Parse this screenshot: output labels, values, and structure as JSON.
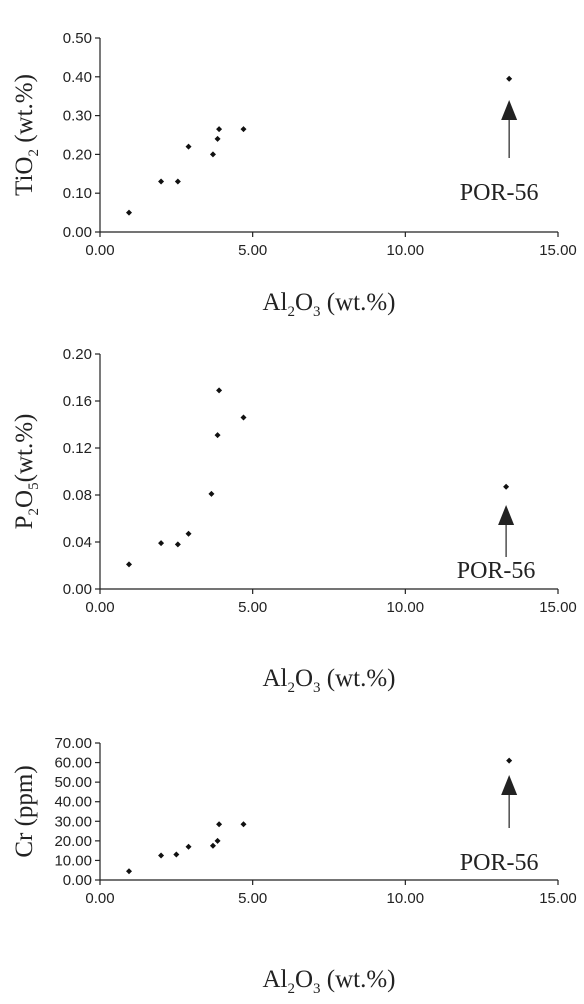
{
  "chart_data": [
    {
      "type": "scatter",
      "title": "",
      "xlabel": {
        "pre": "Al",
        "s1": "2",
        "mid": "O",
        "s2": "3",
        "post": " (wt.%)"
      },
      "ylabel": {
        "pre": "TiO",
        "sub": "2",
        "post": " (wt.%)"
      },
      "xlim": [
        0,
        15
      ],
      "ylim": [
        0,
        0.5
      ],
      "xticks": [
        "0.00",
        "5.00",
        "10.00",
        "15.00"
      ],
      "yticks": [
        "0.00",
        "0.10",
        "0.20",
        "0.30",
        "0.40",
        "0.50"
      ],
      "grid": false,
      "series": [
        {
          "x": [
            0.95,
            2.0,
            2.55,
            2.9,
            3.7,
            3.85,
            3.9,
            4.7,
            13.4
          ],
          "y": [
            0.05,
            0.13,
            0.13,
            0.22,
            0.2,
            0.24,
            0.265,
            0.265,
            0.395
          ]
        }
      ],
      "annotation": {
        "text": "POR-56",
        "x": 13.4
      }
    },
    {
      "type": "scatter",
      "title": "",
      "xlabel": {
        "pre": "Al",
        "s1": "2",
        "mid": "O",
        "s2": "3",
        "post": " (wt.%)"
      },
      "ylabel": {
        "pre": "P",
        "sub": "2",
        "mid": "O",
        "sub2": "5",
        "post": "(wt.%)"
      },
      "xlim": [
        0,
        15
      ],
      "ylim": [
        0,
        0.2
      ],
      "xticks": [
        "0.00",
        "5.00",
        "10.00",
        "15.00"
      ],
      "yticks": [
        "0.00",
        "0.04",
        "0.08",
        "0.12",
        "0.16",
        "0.20"
      ],
      "grid": false,
      "series": [
        {
          "x": [
            0.95,
            2.0,
            2.55,
            2.9,
            3.65,
            3.85,
            3.9,
            4.7,
            13.3
          ],
          "y": [
            0.021,
            0.039,
            0.038,
            0.047,
            0.081,
            0.131,
            0.169,
            0.146,
            0.087
          ]
        }
      ],
      "annotation": {
        "text": "POR-56",
        "x": 13.3
      }
    },
    {
      "type": "scatter",
      "title": "",
      "xlabel": {
        "pre": "Al",
        "s1": "2",
        "mid": "O",
        "s2": "3",
        "post": " (wt.%)"
      },
      "ylabel": {
        "pre": "Cr (ppm)",
        "sub": "",
        "post": ""
      },
      "xlim": [
        0,
        15
      ],
      "ylim": [
        0,
        70
      ],
      "xticks": [
        "0.00",
        "5.00",
        "10.00",
        "15.00"
      ],
      "yticks": [
        "0.00",
        "10.00",
        "20.00",
        "30.00",
        "40.00",
        "50.00",
        "60.00",
        "70.00"
      ],
      "grid": false,
      "series": [
        {
          "x": [
            0.95,
            2.0,
            2.5,
            2.9,
            3.7,
            3.85,
            3.9,
            4.7,
            13.4
          ],
          "y": [
            4.5,
            12.5,
            13,
            17,
            17.5,
            20,
            28.5,
            28.5,
            61
          ]
        }
      ],
      "annotation": {
        "text": "POR-56",
        "x": 13.4
      }
    }
  ]
}
